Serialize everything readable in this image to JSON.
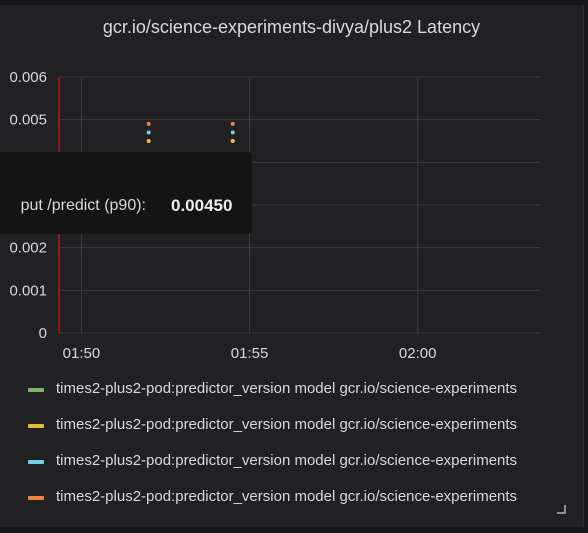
{
  "panel": {
    "title": "gcr.io/science-experiments-divya/plus2 Latency"
  },
  "chart_data": {
    "type": "scatter",
    "title": "gcr.io/science-experiments-divya/plus2 Latency",
    "xlabel": "",
    "ylabel": "",
    "x_ticks": [
      "01:50",
      "01:55",
      "02:00"
    ],
    "y_ticks": [
      "0",
      "0.001",
      "0.002",
      "0.003",
      "0.004",
      "0.005",
      "0.006"
    ],
    "ylim": [
      0,
      0.006
    ],
    "xlim": [
      "01:49:20",
      "02:03:40"
    ],
    "grid": true,
    "cursor_time": "01:49:20",
    "series": [
      {
        "name": "times2-plus2-pod:predictor_version model gcr.io/science-experiments",
        "color": "#7eb26d",
        "points": [
          [
            "01:52:00",
            0.0045
          ],
          [
            "01:54:30",
            0.0045
          ]
        ]
      },
      {
        "name": "times2-plus2-pod:predictor_version model gcr.io/science-experiments",
        "color": "#eab839",
        "points": [
          [
            "01:52:00",
            0.0045
          ],
          [
            "01:54:30",
            0.0045
          ]
        ]
      },
      {
        "name": "times2-plus2-pod:predictor_version model gcr.io/science-experiments",
        "color": "#6ed0e0",
        "points": [
          [
            "01:52:00",
            0.0047
          ],
          [
            "01:54:30",
            0.0047
          ]
        ]
      },
      {
        "name": "times2-plus2-pod:predictor_version model gcr.io/science-experiments",
        "color": "#ef843c",
        "points": [
          [
            "01:52:00",
            0.0049
          ],
          [
            "01:54:30",
            0.0049
          ]
        ]
      }
    ]
  },
  "tooltip": {
    "series_label": "put /predict (p90):",
    "value": "0.00450"
  }
}
